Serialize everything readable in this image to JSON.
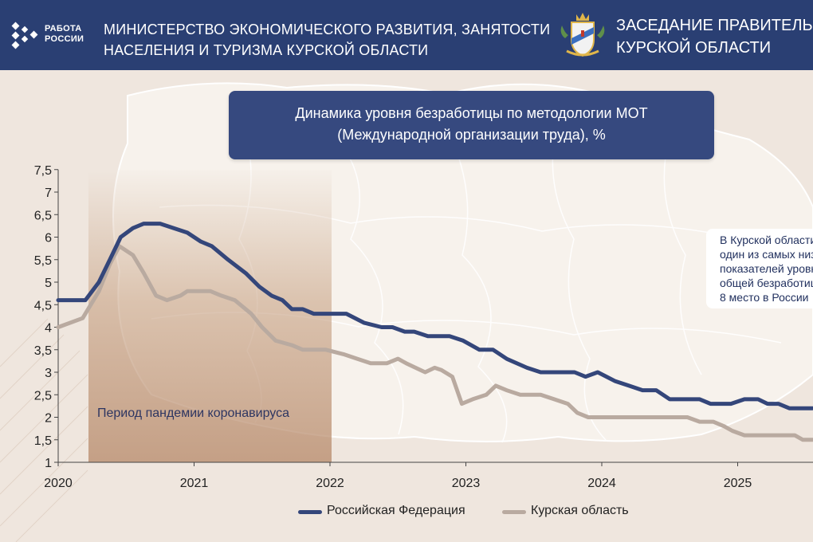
{
  "header": {
    "logo_icon": "rabota-rossii-logo",
    "logo_line1": "РАБОТА",
    "logo_line2": "РОССИИ",
    "ministry_line1": "МИНИСТЕРСТВО ЭКОНОМИЧЕСКОГО РАЗВИТИЯ, ЗАНЯТОСТИ",
    "ministry_line2": "НАСЕЛЕНИЯ И ТУРИЗМА КУРСКОЙ ОБЛАСТИ",
    "emblem_icon": "kursk-coat-of-arms",
    "meeting_line1": "ЗАСЕДАНИЕ ПРАВИТЕЛЬСТВА",
    "meeting_line2": "КУРСКОЙ ОБЛАСТИ",
    "background_color": "#2a3f73"
  },
  "note": {
    "line1": "В Курской области",
    "line2": "один из самых низких",
    "line3": "показателей уровня",
    "line4": "общей безработицы",
    "line5": "8 место в России"
  },
  "chart_data": {
    "type": "line",
    "title_line1": "Динамика уровня безработицы по методологии МОТ",
    "title_line2": "(Международной организации труда), %",
    "xlabel": "",
    "ylabel": "",
    "x_ticks": [
      "2020",
      "2021",
      "2022",
      "2023",
      "2024",
      "2025"
    ],
    "y_ticks": [
      "7,5",
      "7",
      "6,5",
      "6",
      "5,5",
      "5",
      "4,5",
      "4",
      "3,5",
      "3",
      "2,5",
      "2",
      "1,5",
      "1"
    ],
    "ylim": [
      1,
      7.5
    ],
    "xlim": [
      2020,
      2025.55
    ],
    "grid": false,
    "legend_position": "bottom",
    "annotation": {
      "label": "Период пандемии коронавируса",
      "x_start": 2020.22,
      "x_end": 2022.0
    },
    "series": [
      {
        "name": "Российская Федерация",
        "color": "#34467a",
        "points": [
          [
            2020.0,
            4.6
          ],
          [
            2020.2,
            4.6
          ],
          [
            2020.3,
            5.0
          ],
          [
            2020.38,
            5.5
          ],
          [
            2020.46,
            6.0
          ],
          [
            2020.55,
            6.2
          ],
          [
            2020.63,
            6.3
          ],
          [
            2020.75,
            6.3
          ],
          [
            2020.85,
            6.2
          ],
          [
            2020.95,
            6.1
          ],
          [
            2021.05,
            5.9
          ],
          [
            2021.13,
            5.8
          ],
          [
            2021.25,
            5.5
          ],
          [
            2021.38,
            5.2
          ],
          [
            2021.48,
            4.9
          ],
          [
            2021.57,
            4.7
          ],
          [
            2021.65,
            4.6
          ],
          [
            2021.72,
            4.4
          ],
          [
            2021.8,
            4.4
          ],
          [
            2021.88,
            4.3
          ],
          [
            2022.0,
            4.3
          ],
          [
            2022.12,
            4.3
          ],
          [
            2022.25,
            4.1
          ],
          [
            2022.38,
            4.0
          ],
          [
            2022.46,
            4.0
          ],
          [
            2022.55,
            3.9
          ],
          [
            2022.62,
            3.9
          ],
          [
            2022.72,
            3.8
          ],
          [
            2022.88,
            3.8
          ],
          [
            2022.98,
            3.7
          ],
          [
            2023.1,
            3.5
          ],
          [
            2023.2,
            3.5
          ],
          [
            2023.3,
            3.3
          ],
          [
            2023.45,
            3.1
          ],
          [
            2023.55,
            3.0
          ],
          [
            2023.65,
            3.0
          ],
          [
            2023.8,
            3.0
          ],
          [
            2023.88,
            2.9
          ],
          [
            2023.97,
            3.0
          ],
          [
            2024.1,
            2.8
          ],
          [
            2024.2,
            2.7
          ],
          [
            2024.3,
            2.6
          ],
          [
            2024.4,
            2.6
          ],
          [
            2024.5,
            2.4
          ],
          [
            2024.6,
            2.4
          ],
          [
            2024.72,
            2.4
          ],
          [
            2024.8,
            2.3
          ],
          [
            2024.95,
            2.3
          ],
          [
            2025.05,
            2.4
          ],
          [
            2025.15,
            2.4
          ],
          [
            2025.22,
            2.3
          ],
          [
            2025.3,
            2.3
          ],
          [
            2025.38,
            2.2
          ],
          [
            2025.55,
            2.2
          ]
        ]
      },
      {
        "name": "Курская область",
        "color": "#b9aaa0",
        "points": [
          [
            2020.0,
            4.0
          ],
          [
            2020.18,
            4.2
          ],
          [
            2020.3,
            4.8
          ],
          [
            2020.38,
            5.4
          ],
          [
            2020.45,
            5.8
          ],
          [
            2020.55,
            5.6
          ],
          [
            2020.63,
            5.2
          ],
          [
            2020.72,
            4.7
          ],
          [
            2020.8,
            4.6
          ],
          [
            2020.9,
            4.7
          ],
          [
            2020.95,
            4.8
          ],
          [
            2021.05,
            4.8
          ],
          [
            2021.12,
            4.8
          ],
          [
            2021.2,
            4.7
          ],
          [
            2021.3,
            4.6
          ],
          [
            2021.42,
            4.3
          ],
          [
            2021.5,
            4.0
          ],
          [
            2021.6,
            3.7
          ],
          [
            2021.72,
            3.6
          ],
          [
            2021.8,
            3.5
          ],
          [
            2021.97,
            3.5
          ],
          [
            2022.1,
            3.4
          ],
          [
            2022.2,
            3.3
          ],
          [
            2022.3,
            3.2
          ],
          [
            2022.42,
            3.2
          ],
          [
            2022.5,
            3.3
          ],
          [
            2022.56,
            3.2
          ],
          [
            2022.63,
            3.1
          ],
          [
            2022.7,
            3.0
          ],
          [
            2022.77,
            3.1
          ],
          [
            2022.82,
            3.05
          ],
          [
            2022.9,
            2.9
          ],
          [
            2022.97,
            2.3
          ],
          [
            2023.05,
            2.4
          ],
          [
            2023.15,
            2.5
          ],
          [
            2023.22,
            2.7
          ],
          [
            2023.3,
            2.6
          ],
          [
            2023.4,
            2.5
          ],
          [
            2023.55,
            2.5
          ],
          [
            2023.65,
            2.4
          ],
          [
            2023.75,
            2.3
          ],
          [
            2023.82,
            2.1
          ],
          [
            2023.9,
            2.0
          ],
          [
            2024.1,
            2.0
          ],
          [
            2024.3,
            2.0
          ],
          [
            2024.5,
            2.0
          ],
          [
            2024.63,
            2.0
          ],
          [
            2024.72,
            1.9
          ],
          [
            2024.82,
            1.9
          ],
          [
            2024.9,
            1.8
          ],
          [
            2024.96,
            1.7
          ],
          [
            2025.05,
            1.6
          ],
          [
            2025.15,
            1.6
          ],
          [
            2025.3,
            1.6
          ],
          [
            2025.42,
            1.6
          ],
          [
            2025.48,
            1.5
          ],
          [
            2025.55,
            1.5
          ]
        ]
      }
    ]
  }
}
